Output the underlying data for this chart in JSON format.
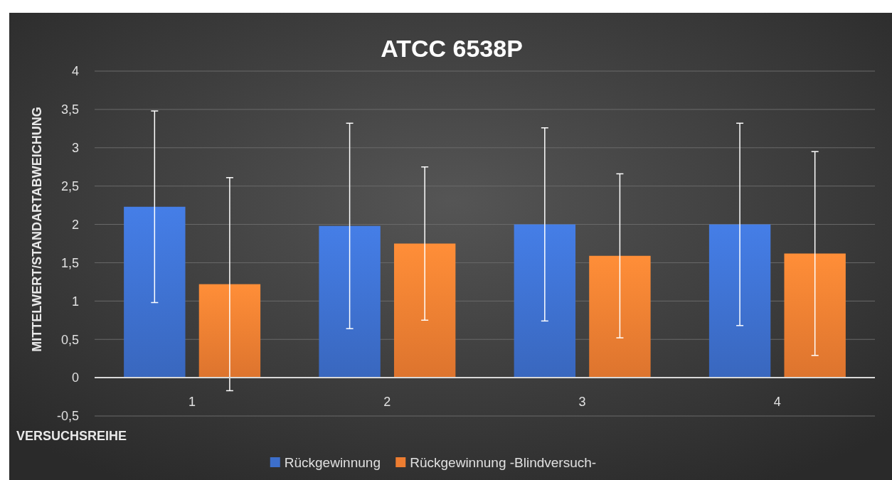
{
  "chart_data": {
    "type": "bar",
    "title": "ATCC 6538P",
    "xlabel": "VERSUCHSREIHE",
    "ylabel": "MITTELWERT/STANDARTABWEICHUNG",
    "categories": [
      "1",
      "2",
      "3",
      "4"
    ],
    "series": [
      {
        "name": "Rückgewinnung",
        "color": "#3d6fcc",
        "values": [
          2.23,
          1.98,
          2.0,
          2.0
        ],
        "errors": [
          1.25,
          1.34,
          1.26,
          1.32
        ]
      },
      {
        "name": "Rückgewinnung -Blindversuch-",
        "color": "#ed7d31",
        "values": [
          1.22,
          1.75,
          1.59,
          1.62
        ],
        "errors": [
          1.39,
          1.0,
          1.07,
          1.33
        ]
      }
    ],
    "ylim": [
      -0.5,
      4
    ],
    "yticks": [
      {
        "value": -0.5,
        "label": "-0,5"
      },
      {
        "value": 0,
        "label": "0"
      },
      {
        "value": 0.5,
        "label": "0,5"
      },
      {
        "value": 1,
        "label": "1"
      },
      {
        "value": 1.5,
        "label": "1,5"
      },
      {
        "value": 2,
        "label": "2"
      },
      {
        "value": 2.5,
        "label": "2,5"
      },
      {
        "value": 3,
        "label": "3"
      },
      {
        "value": 3.5,
        "label": "3,5"
      },
      {
        "value": 4,
        "label": "4"
      }
    ],
    "grid": "y",
    "legend": "bottom"
  }
}
